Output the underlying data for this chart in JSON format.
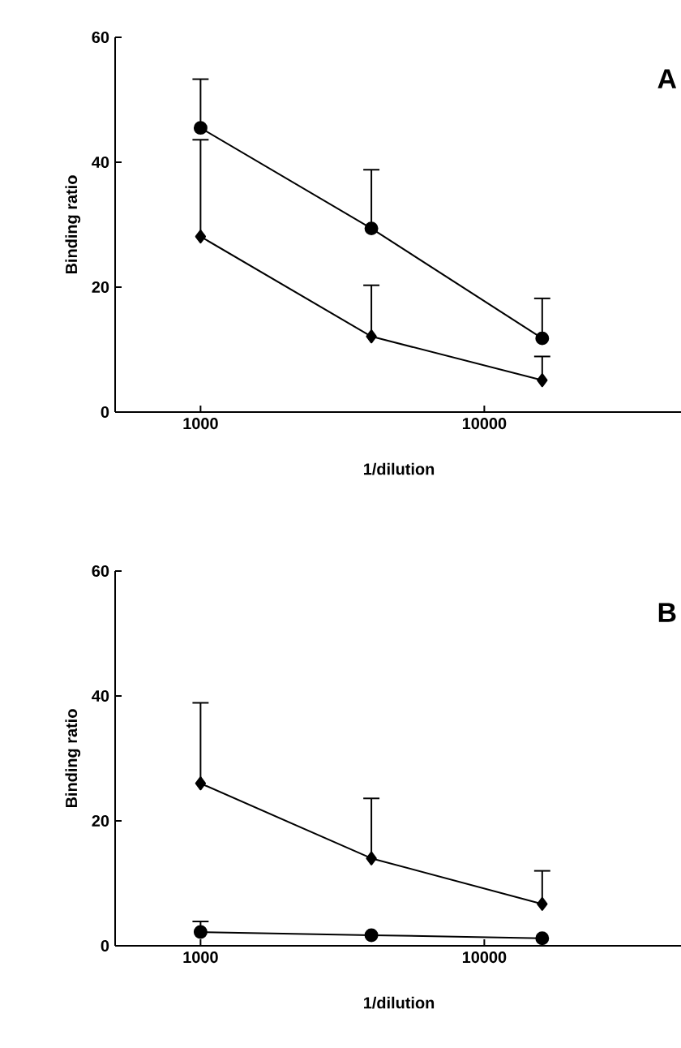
{
  "chart_data": [
    {
      "type": "line",
      "xlabel": "1/dilution",
      "ylabel": "Binding ratio",
      "annotations": [
        "A"
      ],
      "x": [
        1000,
        4000,
        16000
      ],
      "xlim": [
        500,
        50000
      ],
      "xticks": [
        1000,
        10000
      ],
      "ylim": [
        0,
        60
      ],
      "yticks": [
        0,
        20,
        40,
        60
      ],
      "log": "x",
      "grid": false,
      "series": [
        {
          "color": "#000000",
          "marker": "circle",
          "values": [
            45.5,
            29.4,
            11.8
          ],
          "errors": [
            [
              45.5,
              53.3
            ],
            [
              29.4,
              38.8
            ],
            [
              11.8,
              18.2
            ]
          ]
        },
        {
          "color": "#000000",
          "marker": "diamond",
          "values": [
            28.1,
            12.1,
            5.1
          ],
          "errors": [
            [
              28.1,
              43.6
            ],
            [
              12.1,
              20.3
            ],
            [
              5.1,
              8.9
            ]
          ]
        }
      ]
    },
    {
      "type": "line",
      "xlabel": "1/dilution",
      "ylabel": "Binding ratio",
      "annotations": [
        "B"
      ],
      "x": [
        1000,
        4000,
        16000
      ],
      "xlim": [
        500,
        50000
      ],
      "xticks": [
        1000,
        10000
      ],
      "ylim": [
        0,
        60
      ],
      "yticks": [
        0,
        20,
        40,
        60
      ],
      "log": "x",
      "grid": false,
      "series": [
        {
          "color": "#000000",
          "marker": "diamond",
          "values": [
            26.0,
            14.0,
            6.7
          ],
          "errors": [
            [
              26.0,
              38.9
            ],
            [
              14.0,
              23.6
            ],
            [
              6.7,
              12.0
            ]
          ]
        },
        {
          "color": "#000000",
          "marker": "circle",
          "values": [
            2.2,
            1.7,
            1.2
          ],
          "errors": [
            [
              2.2,
              3.9
            ],
            null,
            null
          ]
        }
      ]
    }
  ]
}
